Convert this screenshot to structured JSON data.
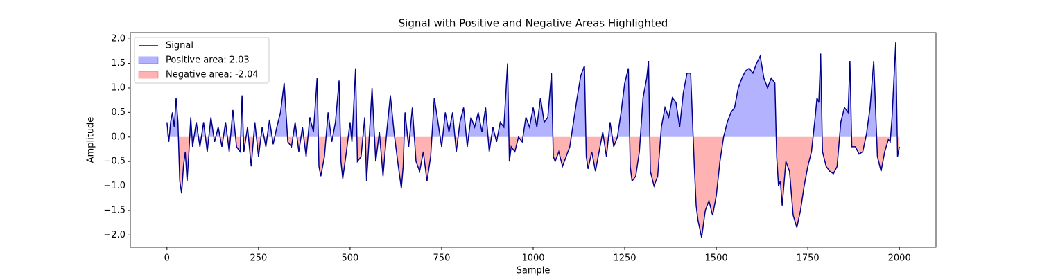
{
  "chart_data": {
    "type": "line",
    "title": "Signal with Positive and Negative Areas Highlighted",
    "xlabel": "Sample",
    "ylabel": "Amplitude",
    "x": [
      0,
      5,
      10,
      15,
      20,
      25,
      30,
      35,
      40,
      45,
      50,
      55,
      60,
      65,
      70,
      80,
      90,
      100,
      110,
      120,
      130,
      140,
      150,
      160,
      170,
      180,
      190,
      200,
      205,
      210,
      220,
      230,
      240,
      250,
      260,
      270,
      280,
      290,
      300,
      310,
      320,
      330,
      340,
      350,
      360,
      370,
      380,
      390,
      400,
      410,
      415,
      420,
      430,
      440,
      450,
      460,
      470,
      475,
      480,
      490,
      500,
      505,
      515,
      520,
      530,
      540,
      545,
      550,
      560,
      570,
      580,
      590,
      600,
      610,
      620,
      630,
      640,
      645,
      650,
      660,
      670,
      680,
      690,
      700,
      710,
      720,
      730,
      740,
      750,
      760,
      770,
      780,
      790,
      800,
      810,
      820,
      830,
      840,
      850,
      860,
      870,
      880,
      890,
      900,
      910,
      920,
      930,
      935,
      940,
      950,
      960,
      970,
      980,
      990,
      1000,
      1010,
      1020,
      1030,
      1040,
      1050,
      1055,
      1060,
      1070,
      1080,
      1090,
      1100,
      1110,
      1120,
      1130,
      1140,
      1145,
      1150,
      1160,
      1170,
      1180,
      1190,
      1200,
      1210,
      1220,
      1230,
      1240,
      1250,
      1260,
      1265,
      1270,
      1280,
      1290,
      1300,
      1310,
      1315,
      1320,
      1330,
      1340,
      1350,
      1360,
      1370,
      1380,
      1390,
      1400,
      1410,
      1420,
      1430,
      1440,
      1445,
      1450,
      1460,
      1470,
      1480,
      1490,
      1500,
      1510,
      1520,
      1530,
      1540,
      1550,
      1560,
      1570,
      1580,
      1590,
      1600,
      1610,
      1620,
      1630,
      1640,
      1650,
      1660,
      1665,
      1670,
      1675,
      1680,
      1690,
      1700,
      1710,
      1720,
      1730,
      1740,
      1750,
      1760,
      1770,
      1775,
      1780,
      1785,
      1790,
      1800,
      1810,
      1820,
      1830,
      1840,
      1850,
      1860,
      1865,
      1870,
      1880,
      1890,
      1900,
      1910,
      1920,
      1930,
      1940,
      1950,
      1960,
      1970,
      1975,
      1980,
      1990,
      1995,
      2000
    ],
    "series": [
      {
        "name": "Signal",
        "color": "#00008b",
        "values": [
          0.3,
          -0.1,
          0.3,
          0.5,
          0.2,
          0.8,
          0.3,
          -0.9,
          -1.15,
          -0.6,
          -0.3,
          -0.9,
          -0.3,
          0.4,
          -0.2,
          0.3,
          -0.2,
          0.3,
          -0.3,
          0.4,
          -0.1,
          0.2,
          -0.2,
          0.3,
          -0.3,
          0.55,
          -0.2,
          -0.3,
          0.85,
          -0.3,
          0.2,
          -0.6,
          0.3,
          -0.4,
          0.2,
          -0.2,
          0.35,
          -0.15,
          0.2,
          0.5,
          1.1,
          -0.1,
          -0.2,
          0.3,
          -0.3,
          0.2,
          -0.4,
          0.4,
          0.1,
          1.2,
          -0.6,
          -0.8,
          -0.4,
          0.5,
          -0.1,
          0.3,
          1.15,
          -0.5,
          -0.85,
          -0.3,
          0.3,
          -0.1,
          1.4,
          -0.5,
          -0.4,
          0.4,
          -0.9,
          -0.3,
          1.0,
          -0.5,
          0.1,
          -0.8,
          0.1,
          0.85,
          0.1,
          -0.5,
          -1.05,
          -0.6,
          0.5,
          -0.2,
          0.6,
          -0.5,
          -0.7,
          -0.3,
          -0.9,
          -0.4,
          0.8,
          0.3,
          -0.2,
          0.5,
          0.1,
          0.5,
          -0.3,
          0.3,
          0.6,
          -0.2,
          0.4,
          0.2,
          0.5,
          0.1,
          0.6,
          -0.3,
          0.2,
          -0.1,
          0.3,
          0.2,
          1.5,
          -0.5,
          -0.2,
          -0.3,
          0.0,
          -0.1,
          0.4,
          0.2,
          0.6,
          0.2,
          0.8,
          0.3,
          0.4,
          1.3,
          -0.4,
          -0.5,
          -0.3,
          -0.6,
          -0.4,
          -0.2,
          0.3,
          0.8,
          1.25,
          1.45,
          -0.4,
          -0.65,
          -0.3,
          -0.7,
          -0.3,
          0.1,
          -0.4,
          0.3,
          -0.2,
          0.0,
          0.5,
          1.1,
          1.4,
          -0.6,
          -0.9,
          -0.8,
          -0.3,
          0.8,
          1.2,
          1.55,
          -0.7,
          -1.0,
          -0.8,
          0.2,
          0.6,
          0.4,
          0.8,
          0.7,
          0.2,
          0.9,
          1.3,
          1.3,
          -0.6,
          -1.4,
          -1.7,
          -2.05,
          -1.5,
          -1.3,
          -1.6,
          -1.2,
          -0.5,
          0.0,
          0.3,
          0.5,
          0.6,
          1.0,
          1.2,
          1.35,
          1.4,
          1.3,
          1.5,
          1.65,
          1.2,
          1.0,
          1.2,
          1.1,
          -0.4,
          -1.0,
          -0.9,
          -1.4,
          -0.5,
          -0.7,
          -1.6,
          -1.85,
          -1.5,
          -1.0,
          -0.6,
          -0.3,
          0.4,
          0.8,
          0.7,
          1.7,
          -0.3,
          -0.6,
          -0.7,
          -0.75,
          -0.6,
          0.3,
          0.6,
          0.5,
          1.55,
          -0.2,
          -0.2,
          -0.35,
          -0.3,
          0.05,
          0.6,
          1.55,
          -0.4,
          -0.7,
          -0.3,
          -0.05,
          -0.1,
          0.4,
          1.93,
          -0.4,
          -0.2
        ]
      },
      {
        "name": "Positive area: 2.03",
        "color": "#0000ff",
        "alpha": 0.3,
        "fill": "positive"
      },
      {
        "name": "Negative area: -2.04",
        "color": "#ff0000",
        "alpha": 0.3,
        "fill": "negative"
      }
    ],
    "xlim": [
      -100,
      2100
    ],
    "ylim": [
      -2.25,
      2.13
    ],
    "xticks": [
      0,
      250,
      500,
      750,
      1000,
      1250,
      1500,
      1750,
      2000
    ],
    "yticks": [
      {
        "value": -2,
        "label": "−2.0"
      },
      {
        "value": -1.5,
        "label": "−1.5"
      },
      {
        "value": -1,
        "label": "−1.0"
      },
      {
        "value": -0.5,
        "label": "−0.5"
      },
      {
        "value": 0,
        "label": "0.0"
      },
      0.5,
      {
        "value": 1,
        "label": "1.0"
      },
      1.5,
      {
        "value": 2,
        "label": "2.0"
      }
    ],
    "legend": "upper left"
  }
}
